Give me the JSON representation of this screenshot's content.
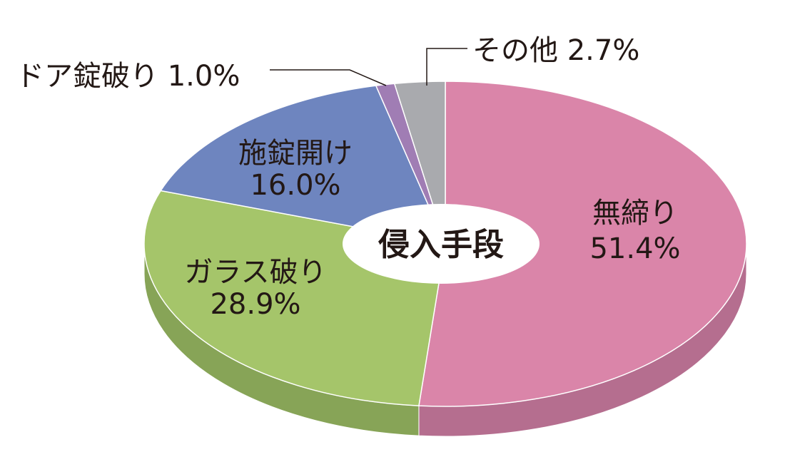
{
  "chart_data": {
    "type": "pie",
    "style": "3d-donut",
    "center_label": "侵入手段",
    "start": "top",
    "direction": "clockwise",
    "slices": [
      {
        "label": "無締り",
        "value": 51.4,
        "value_text": "51.4%",
        "color": "#DA85A9",
        "side_color": "#B56E8F"
      },
      {
        "label": "ガラス破り",
        "value": 28.9,
        "value_text": "28.9%",
        "color": "#A5C56A",
        "side_color": "#87A457"
      },
      {
        "label": "施錠開け",
        "value": 16.0,
        "value_text": "16.0%",
        "color": "#6E85BF",
        "side_color": "#5A6E9E"
      },
      {
        "label": "ドア錠破り",
        "value": 1.0,
        "value_text": "1.0%",
        "color": "#A07DB4",
        "side_color": "#836796"
      },
      {
        "label": "その他",
        "value": 2.7,
        "value_text": "2.7%",
        "color": "#A9AAAE",
        "side_color": "#8C8D91"
      }
    ]
  }
}
